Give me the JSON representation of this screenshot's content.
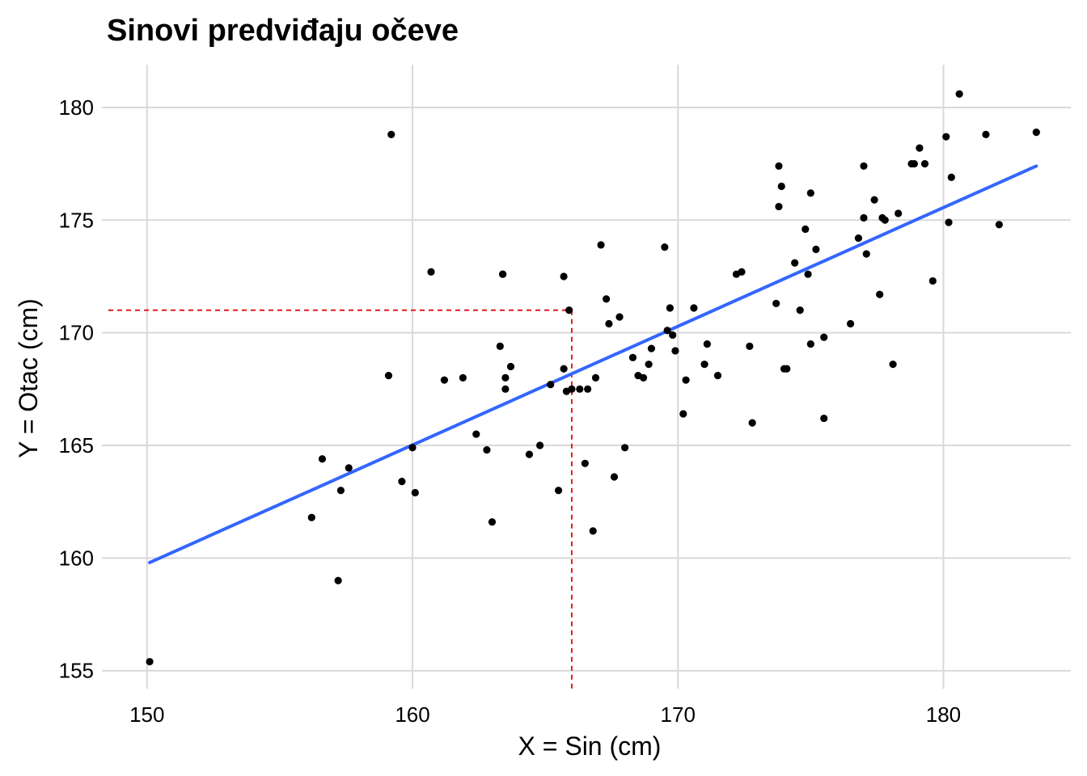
{
  "chart_data": {
    "type": "scatter",
    "title": "Sinovi predviđaju očeve",
    "xlabel": "X = Sin (cm)",
    "ylabel": "Y = Otac (cm)",
    "xlim": [
      148.3,
      184.8
    ],
    "ylim": [
      154.2,
      181.9
    ],
    "x_ticks": [
      150,
      160,
      170,
      180
    ],
    "y_ticks": [
      155,
      160,
      165,
      170,
      175,
      180
    ],
    "grid": true,
    "legend": "none",
    "colors": {
      "points": "#000000",
      "fit_line": "#3366ff",
      "guide_line": "#e31a1c",
      "grid": "#d9d9d9"
    },
    "fit_line": {
      "x": [
        150.1,
        183.5
      ],
      "y": [
        159.8,
        177.4
      ]
    },
    "guide": {
      "x": 166.0,
      "y": 171.0
    },
    "points": {
      "x": [
        150.1,
        156.2,
        156.6,
        157.2,
        157.3,
        157.6,
        159.1,
        159.2,
        159.6,
        160.0,
        160.1,
        160.7,
        161.2,
        161.9,
        162.4,
        162.8,
        163.0,
        163.3,
        163.4,
        163.4,
        163.5,
        163.5,
        163.7,
        164.4,
        164.8,
        165.2,
        165.5,
        165.7,
        165.7,
        165.8,
        165.9,
        166.0,
        166.3,
        166.5,
        166.6,
        166.8,
        166.9,
        167.1,
        167.3,
        167.4,
        167.6,
        167.8,
        168.0,
        168.3,
        168.5,
        168.7,
        168.9,
        169.0,
        169.5,
        169.6,
        169.7,
        169.8,
        169.9,
        170.2,
        170.3,
        170.6,
        171.0,
        171.1,
        171.5,
        172.2,
        172.4,
        172.7,
        172.8,
        173.7,
        173.8,
        173.8,
        173.9,
        174.0,
        174.1,
        174.4,
        174.6,
        174.8,
        174.9,
        175.0,
        175.0,
        175.2,
        175.5,
        175.5,
        176.5,
        176.8,
        177.0,
        177.0,
        177.1,
        177.4,
        177.6,
        177.7,
        177.8,
        178.1,
        178.3,
        178.8,
        178.9,
        179.1,
        179.3,
        179.6,
        180.1,
        180.2,
        180.3,
        180.6,
        181.6,
        182.1,
        183.5
      ],
      "y": [
        155.4,
        161.8,
        164.4,
        159.0,
        163.0,
        164.0,
        168.1,
        178.8,
        163.4,
        164.9,
        162.9,
        172.7,
        167.9,
        168.0,
        165.5,
        164.8,
        161.6,
        169.4,
        172.6,
        172.6,
        168.0,
        167.5,
        168.5,
        164.6,
        165.0,
        167.7,
        163.0,
        172.5,
        168.4,
        167.4,
        171.0,
        167.5,
        167.5,
        164.2,
        167.5,
        161.2,
        168.0,
        173.9,
        171.5,
        170.4,
        163.6,
        170.7,
        164.9,
        168.9,
        168.1,
        168.0,
        168.6,
        169.3,
        173.8,
        170.1,
        171.1,
        169.9,
        169.2,
        166.4,
        167.9,
        171.1,
        168.6,
        169.5,
        168.1,
        172.6,
        172.7,
        169.4,
        166.0,
        171.3,
        175.6,
        177.4,
        176.5,
        168.4,
        168.4,
        173.1,
        171.0,
        174.6,
        172.6,
        169.5,
        176.2,
        173.7,
        169.8,
        166.2,
        170.4,
        174.2,
        175.1,
        177.4,
        173.5,
        175.9,
        171.7,
        175.1,
        175.0,
        168.6,
        175.3,
        177.5,
        177.5,
        178.2,
        177.5,
        172.3,
        178.7,
        174.9,
        176.9,
        180.6,
        178.8,
        174.8,
        178.9
      ]
    }
  }
}
